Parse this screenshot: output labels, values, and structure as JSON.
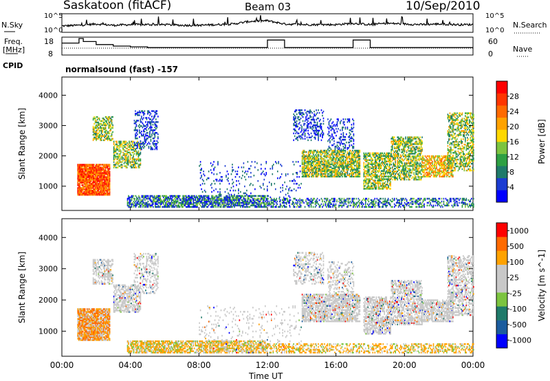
{
  "header": {
    "station": "Saskatoon (fitACF)",
    "beam": "Beam 03",
    "date": "10/Sep/2010"
  },
  "left_labels": {
    "nsky": "N.Sky",
    "freq": "Freq.",
    "freq_unit": "[MHz]",
    "cpid": "CPID"
  },
  "right_labels": {
    "nsearch": "N.Search",
    "nave": "Nave"
  },
  "cpid_text": "normalsound (fast) -157",
  "colors": {
    "power": [
      "#0000ff",
      "#1b3cd2",
      "#1f7a6a",
      "#2ea043",
      "#7cc43f",
      "#ffd800",
      "#ffa200",
      "#ff6a00",
      "#ff3600",
      "#ff0000"
    ],
    "velocity": [
      "#ff0000",
      "#ff6a00",
      "#ffa200",
      "#c8c8c8",
      "#c8c8c8",
      "#7cc43f",
      "#1f7a6a",
      "#1b5c9e",
      "#0000ff"
    ],
    "velocity_ground": "#c8c8c8"
  },
  "chart_data": [
    {
      "type": "line",
      "name": "noise",
      "ylabel": "N.Sky",
      "y_ticks": [
        "10^5",
        "10^0"
      ],
      "y2_ticks": [
        "10^5",
        "10^0"
      ],
      "y2label": "N.Search",
      "x": [
        0,
        1,
        2,
        3,
        4,
        5,
        6,
        7,
        8,
        9,
        10,
        11,
        12,
        13,
        14,
        15,
        16,
        17,
        18,
        19,
        20,
        21,
        22,
        23,
        24
      ],
      "series": [
        {
          "name": "N.Sky",
          "values": [
            0.2,
            0.25,
            0.35,
            0.25,
            0.3,
            0.3,
            0.3,
            0.25,
            0.25,
            0.3,
            0.35,
            0.55,
            0.6,
            0.35,
            0.3,
            0.3,
            0.3,
            0.4,
            0.3,
            0.4,
            0.35,
            0.3,
            0.35,
            0.3,
            0.3
          ]
        }
      ]
    },
    {
      "type": "line",
      "name": "frequency",
      "ylabel": "Freq. [MHz]",
      "y_ticks": [
        "18",
        "8"
      ],
      "y2_ticks": [
        "60",
        "0"
      ],
      "y2label": "Nave",
      "x": [
        0,
        1,
        1.25,
        2,
        3,
        4,
        5,
        8,
        11,
        12,
        13,
        14,
        16,
        17,
        18,
        20,
        21,
        22,
        24
      ],
      "series": [
        {
          "name": "Freq",
          "values": [
            15,
            18,
            16,
            14,
            13,
            12.5,
            12,
            12,
            12,
            17,
            12,
            12,
            12,
            17,
            12,
            12,
            12,
            12,
            12
          ]
        }
      ]
    },
    {
      "type": "heatmap",
      "name": "power",
      "ylabel": "Slant Range [km]",
      "y_ticks": [
        "1000",
        "2000",
        "3000",
        "4000"
      ],
      "ylim": [
        200,
        4600
      ],
      "colorbar_label": "Power [dB]",
      "colorbar_ticks": [
        "4",
        "8",
        "12",
        "16",
        "20",
        "24",
        "28"
      ]
    },
    {
      "type": "heatmap",
      "name": "velocity",
      "ylabel": "Slant Range [km]",
      "y_ticks": [
        "1000",
        "2000",
        "3000",
        "4000"
      ],
      "ylim": [
        200,
        4600
      ],
      "colorbar_label": "Velocity [m s^-1]",
      "colorbar_ticks": [
        "1000",
        "500",
        "100",
        "25",
        "-25",
        "-100",
        "-500",
        "-1000"
      ]
    }
  ],
  "x_axis": {
    "ticks": [
      "00:00",
      "04:00",
      "08:00",
      "12:00",
      "16:00",
      "20:00",
      "00:00"
    ],
    "label": "Time UT"
  }
}
